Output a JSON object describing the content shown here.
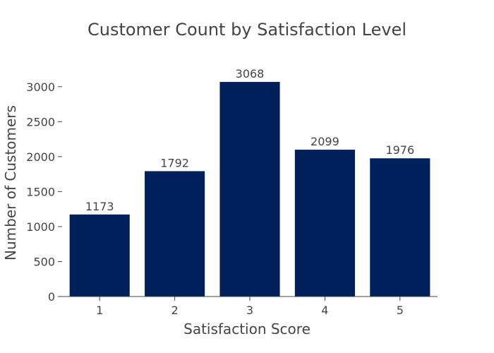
{
  "chart_data": {
    "type": "bar",
    "title": "Customer Count by Satisfaction Level",
    "xlabel": "Satisfaction Score",
    "ylabel": "Number of Customers",
    "categories": [
      "1",
      "2",
      "3",
      "4",
      "5"
    ],
    "values": [
      1173,
      1792,
      3068,
      2099,
      1976
    ],
    "data_labels": [
      "1173",
      "1792",
      "3068",
      "2099",
      "1976"
    ],
    "yticks": [
      0,
      500,
      1000,
      1500,
      2000,
      2500,
      3000
    ],
    "ylim": [
      0,
      3230
    ],
    "grid": false,
    "legend": "none",
    "bar_color": "#00205B"
  }
}
